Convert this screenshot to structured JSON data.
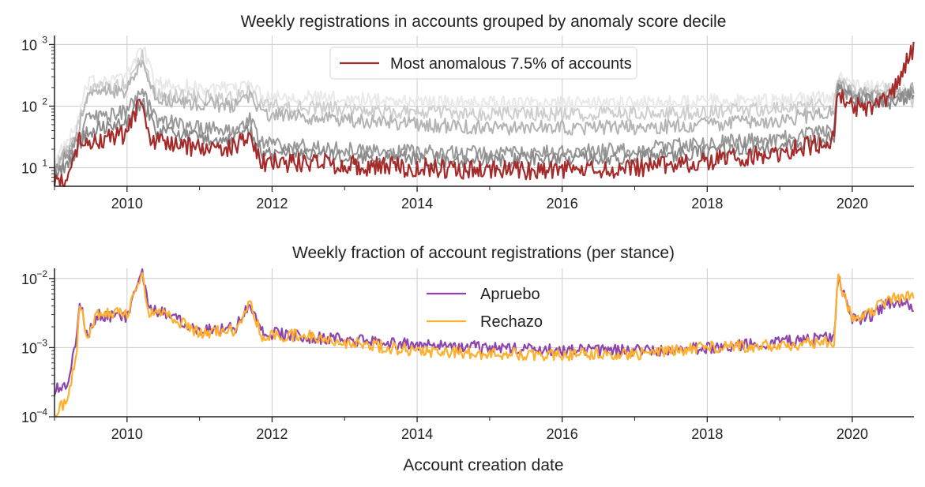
{
  "chart_data": [
    {
      "type": "line",
      "title": "Weekly registrations in accounts grouped by anomaly score decile",
      "xlabel": "",
      "ylabel": "",
      "yscale": "log",
      "xlim": [
        2009.0,
        2020.85
      ],
      "ylim": [
        5,
        1400
      ],
      "x_ticks": [
        "2010",
        "2012",
        "2014",
        "2016",
        "2018",
        "2020"
      ],
      "y_ticks": [
        {
          "base": "10",
          "exp": "1"
        },
        {
          "base": "10",
          "exp": "2"
        },
        {
          "base": "10",
          "exp": "3"
        }
      ],
      "grid": true,
      "legend": {
        "position": "top-center",
        "entries": [
          "Most anomalous 7.5% of accounts"
        ]
      },
      "series": [
        {
          "name": "decile (lightest)",
          "color": "#e9e9e9",
          "points": [
            [
              2009.0,
              12
            ],
            [
              2009.3,
              45
            ],
            [
              2009.45,
              220
            ],
            [
              2009.7,
              280
            ],
            [
              2010.0,
              300
            ],
            [
              2010.2,
              1000
            ],
            [
              2010.4,
              230
            ],
            [
              2011.0,
              200
            ],
            [
              2011.5,
              180
            ],
            [
              2011.7,
              260
            ],
            [
              2011.85,
              150
            ],
            [
              2012.5,
              140
            ],
            [
              2013.0,
              130
            ],
            [
              2014.0,
              120
            ],
            [
              2015.0,
              110
            ],
            [
              2016.0,
              110
            ],
            [
              2017.0,
              110
            ],
            [
              2018.0,
              120
            ],
            [
              2019.0,
              120
            ],
            [
              2019.75,
              150
            ],
            [
              2019.8,
              290
            ],
            [
              2020.0,
              220
            ],
            [
              2020.5,
              210
            ],
            [
              2020.8,
              160
            ]
          ]
        },
        {
          "name": "decile (light)",
          "color": "#cfcfcf",
          "points": [
            [
              2009.0,
              10
            ],
            [
              2009.3,
              35
            ],
            [
              2009.45,
              170
            ],
            [
              2009.7,
              200
            ],
            [
              2010.0,
              220
            ],
            [
              2010.2,
              700
            ],
            [
              2010.4,
              160
            ],
            [
              2011.0,
              140
            ],
            [
              2011.5,
              130
            ],
            [
              2011.7,
              190
            ],
            [
              2011.85,
              100
            ],
            [
              2012.5,
              95
            ],
            [
              2013.0,
              90
            ],
            [
              2014.0,
              80
            ],
            [
              2015.0,
              75
            ],
            [
              2016.0,
              75
            ],
            [
              2017.0,
              75
            ],
            [
              2018.0,
              80
            ],
            [
              2019.0,
              90
            ],
            [
              2019.75,
              110
            ],
            [
              2019.8,
              260
            ],
            [
              2020.0,
              190
            ],
            [
              2020.5,
              180
            ],
            [
              2020.8,
              120
            ]
          ]
        },
        {
          "name": "decile (mid-light)",
          "color": "#b4b4b4",
          "points": [
            [
              2009.0,
              9
            ],
            [
              2009.3,
              30
            ],
            [
              2009.45,
              150
            ],
            [
              2009.7,
              170
            ],
            [
              2010.0,
              180
            ],
            [
              2010.2,
              500
            ],
            [
              2010.4,
              130
            ],
            [
              2011.0,
              110
            ],
            [
              2011.5,
              100
            ],
            [
              2011.7,
              160
            ],
            [
              2011.85,
              75
            ],
            [
              2012.5,
              65
            ],
            [
              2013.0,
              60
            ],
            [
              2014.0,
              50
            ],
            [
              2015.0,
              45
            ],
            [
              2016.0,
              45
            ],
            [
              2017.0,
              45
            ],
            [
              2018.0,
              50
            ],
            [
              2019.0,
              60
            ],
            [
              2019.75,
              80
            ],
            [
              2019.8,
              240
            ],
            [
              2020.0,
              170
            ],
            [
              2020.5,
              150
            ],
            [
              2020.8,
              200
            ]
          ]
        },
        {
          "name": "decile (mid)",
          "color": "#999999",
          "points": [
            [
              2009.0,
              8
            ],
            [
              2009.3,
              25
            ],
            [
              2009.45,
              60
            ],
            [
              2009.7,
              70
            ],
            [
              2010.0,
              80
            ],
            [
              2010.2,
              180
            ],
            [
              2010.4,
              60
            ],
            [
              2011.0,
              45
            ],
            [
              2011.5,
              40
            ],
            [
              2011.7,
              60
            ],
            [
              2011.85,
              25
            ],
            [
              2012.5,
              22
            ],
            [
              2013.0,
              20
            ],
            [
              2014.0,
              18
            ],
            [
              2015.0,
              17
            ],
            [
              2016.0,
              18
            ],
            [
              2017.0,
              20
            ],
            [
              2018.0,
              25
            ],
            [
              2019.0,
              30
            ],
            [
              2019.75,
              40
            ],
            [
              2019.8,
              200
            ],
            [
              2020.0,
              150
            ],
            [
              2020.5,
              130
            ],
            [
              2020.8,
              180
            ]
          ]
        },
        {
          "name": "decile (dark)",
          "color": "#8a8a8a",
          "points": [
            [
              2009.0,
              7
            ],
            [
              2009.3,
              18
            ],
            [
              2009.45,
              40
            ],
            [
              2009.7,
              45
            ],
            [
              2010.0,
              50
            ],
            [
              2010.2,
              120
            ],
            [
              2010.4,
              40
            ],
            [
              2011.0,
              30
            ],
            [
              2011.5,
              28
            ],
            [
              2011.7,
              40
            ],
            [
              2011.85,
              18
            ],
            [
              2012.5,
              16
            ],
            [
              2013.0,
              15
            ],
            [
              2014.0,
              14
            ],
            [
              2015.0,
              13
            ],
            [
              2016.0,
              14
            ],
            [
              2017.0,
              15
            ],
            [
              2018.0,
              18
            ],
            [
              2019.0,
              22
            ],
            [
              2019.75,
              30
            ],
            [
              2019.8,
              180
            ],
            [
              2020.0,
              130
            ],
            [
              2020.5,
              110
            ],
            [
              2020.8,
              150
            ]
          ]
        },
        {
          "name": "Most anomalous 7.5% of accounts",
          "color": "#a52a2a",
          "highlight": true,
          "points": [
            [
              2009.0,
              5.5
            ],
            [
              2009.2,
              6
            ],
            [
              2009.35,
              30
            ],
            [
              2009.5,
              25
            ],
            [
              2010.0,
              35
            ],
            [
              2010.2,
              130
            ],
            [
              2010.3,
              30
            ],
            [
              2010.6,
              25
            ],
            [
              2011.0,
              20
            ],
            [
              2011.5,
              22
            ],
            [
              2011.7,
              35
            ],
            [
              2011.85,
              12
            ],
            [
              2012.5,
              12
            ],
            [
              2013.0,
              11
            ],
            [
              2014.0,
              10
            ],
            [
              2015.0,
              9
            ],
            [
              2016.0,
              9
            ],
            [
              2017.0,
              10
            ],
            [
              2018.0,
              13
            ],
            [
              2019.0,
              18
            ],
            [
              2019.75,
              28
            ],
            [
              2019.8,
              150
            ],
            [
              2020.0,
              100
            ],
            [
              2020.3,
              90
            ],
            [
              2020.6,
              200
            ],
            [
              2020.85,
              950
            ]
          ]
        }
      ]
    },
    {
      "type": "line",
      "title": "Weekly fraction of account registrations (per stance)",
      "xlabel": "Account creation date",
      "ylabel": "",
      "yscale": "log",
      "xlim": [
        2009.0,
        2020.85
      ],
      "ylim": [
        0.0001,
        0.014
      ],
      "x_ticks": [
        "2010",
        "2012",
        "2014",
        "2016",
        "2018",
        "2020"
      ],
      "y_ticks": [
        {
          "base": "10",
          "exp": "−4"
        },
        {
          "base": "10",
          "exp": "−3"
        },
        {
          "base": "10",
          "exp": "−2"
        }
      ],
      "grid": true,
      "legend": {
        "position": "top-center",
        "entries": [
          "Apruebo",
          "Rechazo"
        ]
      },
      "series": [
        {
          "name": "Apruebo",
          "color": "#8e44ad",
          "points": [
            [
              2009.0,
              0.00025
            ],
            [
              2009.2,
              0.0003
            ],
            [
              2009.3,
              0.0015
            ],
            [
              2009.35,
              0.0045
            ],
            [
              2009.45,
              0.0015
            ],
            [
              2009.6,
              0.003
            ],
            [
              2010.0,
              0.0028
            ],
            [
              2010.2,
              0.013
            ],
            [
              2010.3,
              0.0035
            ],
            [
              2010.6,
              0.003
            ],
            [
              2011.0,
              0.0018
            ],
            [
              2011.5,
              0.002
            ],
            [
              2011.7,
              0.0045
            ],
            [
              2011.85,
              0.0017
            ],
            [
              2012.5,
              0.0014
            ],
            [
              2013.0,
              0.0013
            ],
            [
              2014.0,
              0.0011
            ],
            [
              2015.0,
              0.001
            ],
            [
              2016.0,
              0.0009
            ],
            [
              2017.0,
              0.0009
            ],
            [
              2018.0,
              0.001
            ],
            [
              2019.0,
              0.0012
            ],
            [
              2019.75,
              0.0014
            ],
            [
              2019.8,
              0.011
            ],
            [
              2020.0,
              0.0025
            ],
            [
              2020.3,
              0.003
            ],
            [
              2020.5,
              0.0045
            ],
            [
              2020.85,
              0.004
            ]
          ]
        },
        {
          "name": "Rechazo",
          "color": "#ffb02e",
          "points": [
            [
              2009.0,
              0.0001
            ],
            [
              2009.2,
              0.0002
            ],
            [
              2009.3,
              0.0008
            ],
            [
              2009.35,
              0.0045
            ],
            [
              2009.45,
              0.0013
            ],
            [
              2009.6,
              0.0032
            ],
            [
              2010.0,
              0.003
            ],
            [
              2010.2,
              0.012
            ],
            [
              2010.3,
              0.0033
            ],
            [
              2010.6,
              0.0028
            ],
            [
              2011.0,
              0.0016
            ],
            [
              2011.5,
              0.0018
            ],
            [
              2011.7,
              0.0046
            ],
            [
              2011.85,
              0.0015
            ],
            [
              2012.5,
              0.0015
            ],
            [
              2013.0,
              0.0012
            ],
            [
              2014.0,
              0.0009
            ],
            [
              2015.0,
              0.0008
            ],
            [
              2016.0,
              0.0008
            ],
            [
              2017.0,
              0.0008
            ],
            [
              2018.0,
              0.001
            ],
            [
              2019.0,
              0.0011
            ],
            [
              2019.75,
              0.0012
            ],
            [
              2019.8,
              0.0105
            ],
            [
              2020.0,
              0.0025
            ],
            [
              2020.3,
              0.0035
            ],
            [
              2020.5,
              0.005
            ],
            [
              2020.85,
              0.0055
            ]
          ]
        }
      ]
    }
  ]
}
